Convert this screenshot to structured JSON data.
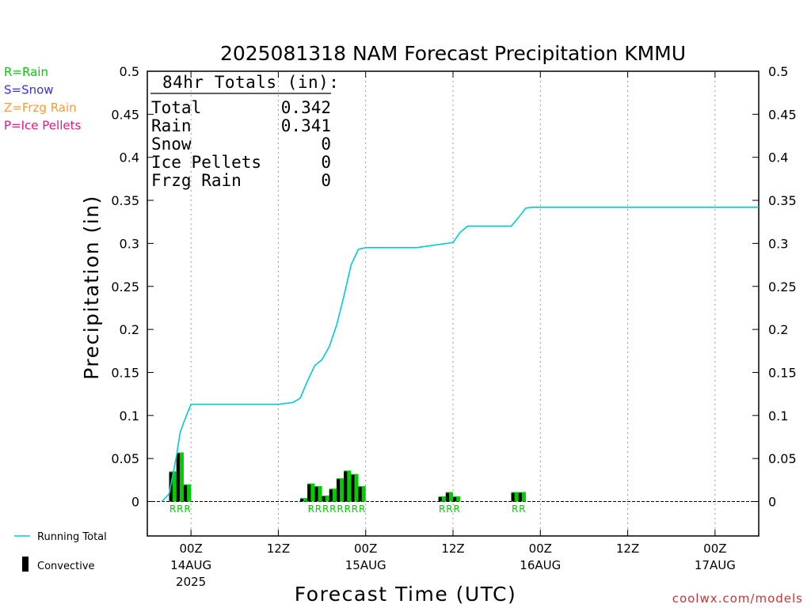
{
  "chart_data": {
    "type": "bar",
    "title": "2025081318 NAM Forecast Precipitation KMMU",
    "xlabel": "Forecast Time (UTC)",
    "ylabel": "Precipitation (in)",
    "ylim": [
      -0.04,
      0.5
    ],
    "xlim": [
      -6,
      78
    ],
    "yticks": [
      "0",
      "0.05",
      "0.1",
      "0.15",
      "0.2",
      "0.25",
      "0.3",
      "0.35",
      "0.4",
      "0.45",
      "0.5"
    ],
    "xticks": [
      {
        "hour": 0,
        "label": "00Z",
        "sub1": "14AUG",
        "sub2": "2025"
      },
      {
        "hour": 12,
        "label": "12Z",
        "sub1": "",
        "sub2": ""
      },
      {
        "hour": 24,
        "label": "00Z",
        "sub1": "15AUG",
        "sub2": ""
      },
      {
        "hour": 36,
        "label": "12Z",
        "sub1": "",
        "sub2": ""
      },
      {
        "hour": 48,
        "label": "00Z",
        "sub1": "16AUG",
        "sub2": ""
      },
      {
        "hour": 60,
        "label": "12Z",
        "sub1": "",
        "sub2": ""
      },
      {
        "hour": 72,
        "label": "00Z",
        "sub1": "17AUG",
        "sub2": ""
      }
    ],
    "grid": "vertical-dotted",
    "legend": {
      "ptypes": [
        {
          "label": "R=Rain",
          "color": "#00cc00"
        },
        {
          "label": "S=Snow",
          "color": "#3333dd"
        },
        {
          "label": "Z=Frzg Rain",
          "color": "#ff9933"
        },
        {
          "label": "P=Ice Pellets",
          "color": "#ee1188"
        }
      ],
      "running_total": "Running Total",
      "convective": "Convective"
    },
    "totals": {
      "header": "84hr Totals (in):",
      "rows": [
        {
          "label": "Total",
          "value": "0.342"
        },
        {
          "label": "Rain",
          "value": "0.341"
        },
        {
          "label": "Snow",
          "value": "0"
        },
        {
          "label": "Ice Pellets",
          "value": "0"
        },
        {
          "label": "Frzg Rain",
          "value": "0"
        }
      ]
    },
    "bars": [
      {
        "hour": -2,
        "total": 0.035,
        "convective": 0.034,
        "type": "R"
      },
      {
        "hour": -1,
        "total": 0.057,
        "convective": 0.056,
        "type": "R"
      },
      {
        "hour": 0,
        "total": 0.02,
        "convective": 0.019,
        "type": "R"
      },
      {
        "hour": 16,
        "total": 0.004,
        "convective": 0.003,
        "type": ""
      },
      {
        "hour": 17,
        "total": 0.021,
        "convective": 0.02,
        "type": "R"
      },
      {
        "hour": 18,
        "total": 0.018,
        "convective": 0.017,
        "type": "R"
      },
      {
        "hour": 19,
        "total": 0.007,
        "convective": 0.006,
        "type": "R"
      },
      {
        "hour": 20,
        "total": 0.015,
        "convective": 0.014,
        "type": "R"
      },
      {
        "hour": 21,
        "total": 0.027,
        "convective": 0.026,
        "type": "R"
      },
      {
        "hour": 22,
        "total": 0.036,
        "convective": 0.035,
        "type": "R"
      },
      {
        "hour": 23,
        "total": 0.032,
        "convective": 0.031,
        "type": "R"
      },
      {
        "hour": 24,
        "total": 0.018,
        "convective": 0.017,
        "type": "R"
      },
      {
        "hour": 35,
        "total": 0.006,
        "convective": 0.005,
        "type": "R"
      },
      {
        "hour": 36,
        "total": 0.011,
        "convective": 0.01,
        "type": "R"
      },
      {
        "hour": 37,
        "total": 0.006,
        "convective": 0.005,
        "type": "R"
      },
      {
        "hour": 45,
        "total": 0.011,
        "convective": 0.01,
        "type": "R"
      },
      {
        "hour": 46,
        "total": 0.011,
        "convective": 0.01,
        "type": "R"
      }
    ],
    "running_total": {
      "x": [
        -4,
        -3,
        -2,
        -1.5,
        -1,
        0,
        12,
        14,
        15,
        16,
        17,
        18,
        19,
        20,
        21,
        22,
        23,
        24,
        25,
        31,
        36,
        37,
        38,
        43,
        44,
        45,
        46,
        47,
        72,
        78
      ],
      "y": [
        0,
        0.009,
        0.053,
        0.08,
        0.092,
        0.113,
        0.113,
        0.115,
        0.12,
        0.14,
        0.158,
        0.165,
        0.18,
        0.205,
        0.238,
        0.275,
        0.293,
        0.295,
        0.295,
        0.295,
        0.301,
        0.313,
        0.32,
        0.32,
        0.32,
        0.33,
        0.341,
        0.342,
        0.342,
        0.342
      ]
    }
  },
  "watermark": "coolwx.com/models"
}
